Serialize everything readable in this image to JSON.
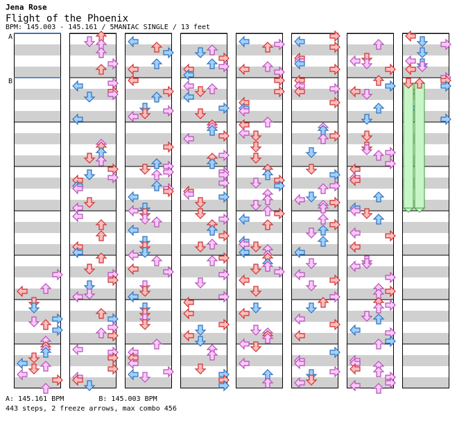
{
  "header": {
    "artist": "Jena Rose",
    "title": "Flight of the Phoenix",
    "bpm_line": "BPM: 145.003 - 145.161 / 5MANIAC SINGLE / 13 feet"
  },
  "markers": {
    "a": "A",
    "b": "B"
  },
  "footer": {
    "bpm_a": "A: 145.161 BPM",
    "bpm_b": "B: 145.003 BPM",
    "stats": "443 steps, 2 freeze arrows, max combo 456"
  },
  "colors": {
    "red_fill": "#ffbcbc",
    "red_edge": "#cc3030",
    "blue_fill": "#9fd0ff",
    "blue_edge": "#2f6fb8",
    "pink_fill": "#ffc8ff",
    "pink_edge": "#b050b0",
    "stripe": "#d0d0d0",
    "freeze_fill": "#c8f5c8",
    "freeze_edge": "#3a9a3a"
  },
  "chart_data": {
    "type": "step-chart",
    "columns": 8,
    "measures_per_column": 8,
    "lanes": [
      "left",
      "down",
      "up",
      "right"
    ],
    "empty_measures_col1": 5,
    "freeze_arrows": 2,
    "steps": 443,
    "max_combo": 456
  }
}
